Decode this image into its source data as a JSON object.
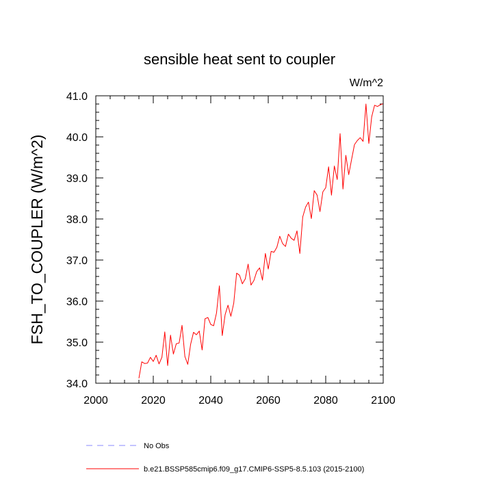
{
  "chart_data": {
    "type": "line",
    "title": "sensible heat sent to coupler",
    "units": "W/m^2",
    "xlabel": "",
    "ylabel": "FSH_TO_COUPLER  (W/m^2)",
    "xlim": [
      2000,
      2100
    ],
    "ylim": [
      34.0,
      41.0
    ],
    "x_ticks": [
      2000,
      2020,
      2040,
      2060,
      2080,
      2100
    ],
    "y_ticks": [
      "34.0",
      "35.0",
      "36.0",
      "37.0",
      "38.0",
      "39.0",
      "40.0",
      "41.0"
    ],
    "grid": false,
    "legend_placement": "bottom",
    "series": [
      {
        "name": "b.e21.BSSP585cmip6.f09_g17.CMIP6-SSP5-8.5.103 (2015-2100)",
        "color": "#ff0000",
        "style": "solid",
        "x": [
          2015,
          2016,
          2017,
          2018,
          2019,
          2020,
          2021,
          2022,
          2023,
          2024,
          2025,
          2026,
          2027,
          2028,
          2029,
          2030,
          2031,
          2032,
          2033,
          2034,
          2035,
          2036,
          2037,
          2038,
          2039,
          2040,
          2041,
          2042,
          2043,
          2044,
          2045,
          2046,
          2047,
          2048,
          2049,
          2050,
          2051,
          2052,
          2053,
          2054,
          2055,
          2056,
          2057,
          2058,
          2059,
          2060,
          2061,
          2062,
          2063,
          2064,
          2065,
          2066,
          2067,
          2068,
          2069,
          2070,
          2071,
          2072,
          2073,
          2074,
          2075,
          2076,
          2077,
          2078,
          2079,
          2080,
          2081,
          2082,
          2083,
          2084,
          2085,
          2086,
          2087,
          2088,
          2089,
          2090,
          2091,
          2092,
          2093,
          2094,
          2095,
          2096,
          2097,
          2098,
          2099,
          2100
        ],
        "values": [
          34.12,
          34.52,
          34.48,
          34.49,
          34.63,
          34.53,
          34.68,
          34.47,
          34.63,
          35.25,
          34.43,
          35.17,
          34.71,
          34.96,
          34.98,
          35.41,
          34.65,
          34.46,
          34.95,
          35.24,
          35.18,
          35.27,
          34.81,
          35.57,
          35.6,
          35.43,
          35.4,
          35.71,
          36.37,
          35.16,
          35.67,
          35.9,
          35.63,
          35.95,
          36.68,
          36.63,
          36.42,
          36.54,
          36.9,
          36.39,
          36.5,
          36.72,
          36.81,
          36.51,
          37.16,
          36.78,
          37.21,
          37.19,
          37.31,
          37.58,
          37.4,
          37.33,
          37.63,
          37.53,
          37.48,
          37.71,
          37.16,
          38.05,
          38.29,
          38.41,
          38.01,
          38.69,
          38.58,
          38.18,
          38.66,
          38.76,
          39.27,
          38.58,
          39.29,
          38.96,
          40.08,
          38.73,
          39.55,
          39.08,
          39.45,
          39.81,
          39.91,
          39.98,
          39.89,
          40.8,
          39.84,
          40.49,
          40.77,
          40.74,
          40.78,
          40.81
        ]
      }
    ],
    "legend": [
      {
        "label": "No Obs",
        "color": "#8888ff",
        "style": "dashed"
      },
      {
        "label": "b.e21.BSSP585cmip6.f09_g17.CMIP6-SSP5-8.5.103 (2015-2100)",
        "color": "#ff0000",
        "style": "solid"
      }
    ]
  }
}
